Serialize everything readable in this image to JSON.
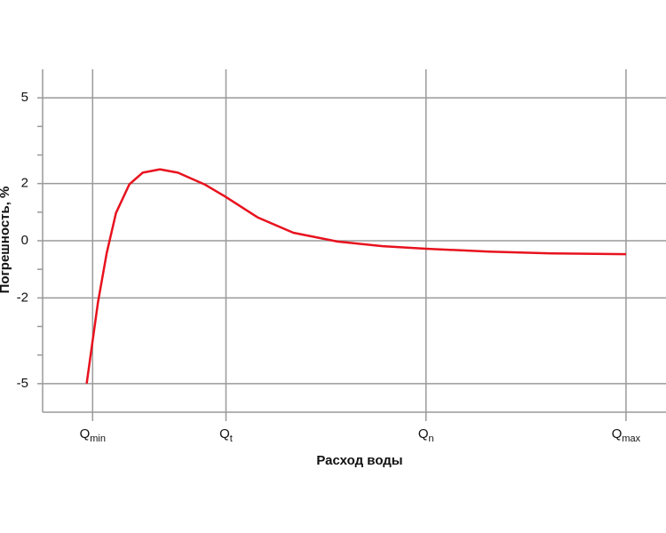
{
  "chart_data": {
    "type": "line",
    "ylabel": "Погрешность, %",
    "xlabel": "Расход воды",
    "xlim": [
      0.25,
      9.6
    ],
    "ylim": [
      -6,
      6
    ],
    "xticks": [
      {
        "value": 1,
        "label": "Q",
        "subscript": "min"
      },
      {
        "value": 3,
        "label": "Q",
        "subscript": "t"
      },
      {
        "value": 6,
        "label": "Q",
        "subscript": "n"
      },
      {
        "value": 9,
        "label": "Q",
        "subscript": "max"
      }
    ],
    "yticks": [
      5,
      2,
      0,
      -2,
      -5
    ],
    "yminorticks": [
      4,
      3,
      1,
      -1,
      -3,
      -4
    ],
    "grid": true,
    "series": [
      {
        "color": "#e8121e",
        "x": [
          0.91,
          1.08,
          1.21,
          1.35,
          1.55,
          1.75,
          2.01,
          2.28,
          2.68,
          3,
          3.48,
          4.01,
          4.68,
          5.35,
          6,
          6.95,
          7.88,
          9
        ],
        "values": [
          -5,
          -2.16,
          -0.44,
          0.97,
          1.97,
          2.38,
          2.5,
          2.38,
          1.97,
          1.53,
          0.81,
          0.28,
          -0.03,
          -0.19,
          -0.28,
          -0.38,
          -0.44,
          -0.47
        ]
      }
    ]
  }
}
